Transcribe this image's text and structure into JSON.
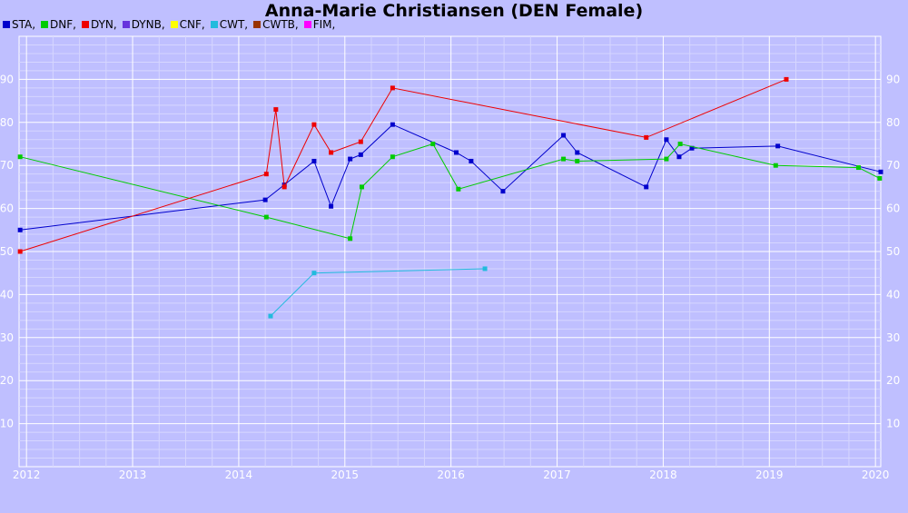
{
  "chart_data": {
    "type": "line",
    "title": "Anna-Marie Christiansen (DEN Female)",
    "xlabel": "",
    "ylabel": "",
    "xlim": [
      2011.93,
      2020.05
    ],
    "ylim": [
      0,
      100
    ],
    "x_ticks": [
      "2012",
      "2013",
      "2014",
      "2015",
      "2016",
      "2017",
      "2018",
      "2019",
      "2020"
    ],
    "y_ticks": [
      "10",
      "20",
      "30",
      "40",
      "50",
      "60",
      "70",
      "80",
      "90"
    ],
    "grid": true,
    "legend_position": "top-left",
    "legend": [
      {
        "label": "STA,",
        "color": "#0000cc"
      },
      {
        "label": "DNF,",
        "color": "#00cc00"
      },
      {
        "label": "DYN,",
        "color": "#ee0000"
      },
      {
        "label": "DYNB,",
        "color": "#6633dd"
      },
      {
        "label": "CNF,",
        "color": "#ffff00"
      },
      {
        "label": "CWT,",
        "color": "#22bbdd"
      },
      {
        "label": "CWTB,",
        "color": "#993300"
      },
      {
        "label": "FIM,",
        "color": "#ff00ff"
      }
    ],
    "series": [
      {
        "name": "STA",
        "color": "#0000cc",
        "points": [
          [
            2011.94,
            55
          ],
          [
            2014.25,
            62
          ],
          [
            2014.43,
            65.5
          ],
          [
            2014.71,
            71
          ],
          [
            2014.87,
            60.5
          ],
          [
            2015.05,
            71.5
          ],
          [
            2015.15,
            72.5
          ],
          [
            2015.45,
            79.5
          ],
          [
            2016.05,
            73
          ],
          [
            2016.19,
            71
          ],
          [
            2016.49,
            64
          ],
          [
            2017.06,
            77
          ],
          [
            2017.19,
            73
          ],
          [
            2017.84,
            65
          ],
          [
            2018.03,
            76
          ],
          [
            2018.15,
            72
          ],
          [
            2018.27,
            74
          ],
          [
            2019.08,
            74.5
          ],
          [
            2020.05,
            68.5
          ]
        ]
      },
      {
        "name": "DNF",
        "color": "#00cc00",
        "points": [
          [
            2011.94,
            72
          ],
          [
            2014.26,
            58
          ],
          [
            2015.05,
            53
          ],
          [
            2015.16,
            65
          ],
          [
            2015.45,
            72
          ],
          [
            2015.83,
            75
          ],
          [
            2016.07,
            64.5
          ],
          [
            2017.06,
            71.5
          ],
          [
            2017.19,
            71
          ],
          [
            2018.03,
            71.5
          ],
          [
            2018.16,
            75
          ],
          [
            2019.06,
            70
          ],
          [
            2019.84,
            69.5
          ],
          [
            2020.04,
            67
          ]
        ]
      },
      {
        "name": "DYN",
        "color": "#ee0000",
        "points": [
          [
            2011.94,
            50
          ],
          [
            2014.26,
            68
          ],
          [
            2014.35,
            83
          ],
          [
            2014.43,
            65
          ],
          [
            2014.71,
            79.5
          ],
          [
            2014.87,
            73
          ],
          [
            2015.15,
            75.5
          ],
          [
            2015.45,
            88
          ],
          [
            2017.84,
            76.5
          ],
          [
            2019.16,
            90
          ]
        ]
      },
      {
        "name": "CWT",
        "color": "#22bbdd",
        "points": [
          [
            2014.3,
            35
          ],
          [
            2014.71,
            45
          ],
          [
            2016.32,
            46
          ]
        ]
      }
    ]
  }
}
